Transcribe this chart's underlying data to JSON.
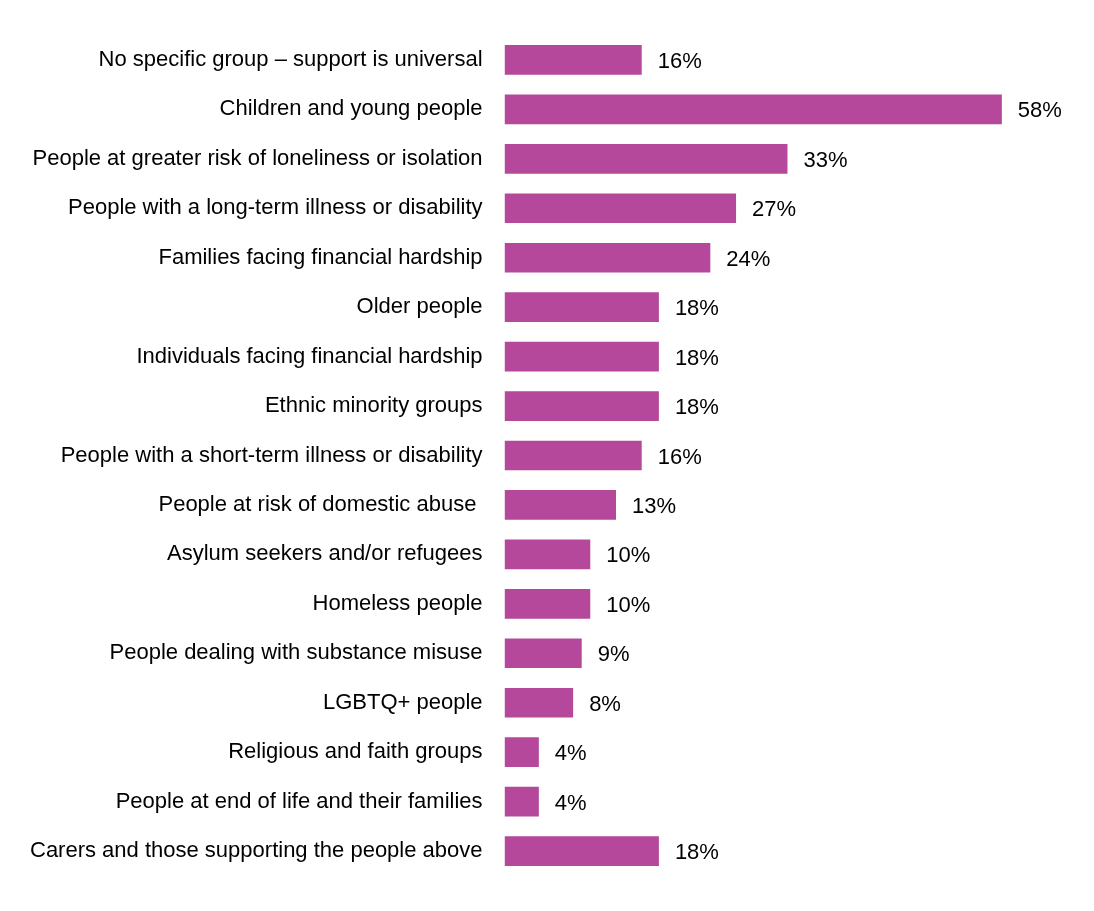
{
  "chart_data": {
    "type": "bar",
    "orientation": "horizontal",
    "categories": [
      "No specific group – support is universal",
      "Children and young people",
      "People at greater risk of loneliness or isolation",
      "People with a long-term illness or disability",
      "Families facing financial hardship",
      "Older people",
      "Individuals facing financial hardship",
      "Ethnic minority groups",
      "People with a short-term illness or disability",
      "People at risk of domestic abuse ",
      "Asylum seekers and/or refugees",
      "Homeless people",
      "People dealing with substance misuse",
      "LGBTQ+ people",
      "Religious and faith groups",
      "People at end of life and their families",
      "Carers and those supporting the people above"
    ],
    "values": [
      16,
      58,
      33,
      27,
      24,
      18,
      18,
      18,
      16,
      13,
      10,
      10,
      9,
      8,
      4,
      4,
      18
    ],
    "value_labels": [
      "16%",
      "58%",
      "33%",
      "27%",
      "24%",
      "18%",
      "18%",
      "18%",
      "16%",
      "13%",
      "10%",
      "10%",
      "9%",
      "8%",
      "4%",
      "4%",
      "18%"
    ],
    "color": "#b5489a",
    "tick_labels": "y",
    "grid": false,
    "legend": false
  }
}
